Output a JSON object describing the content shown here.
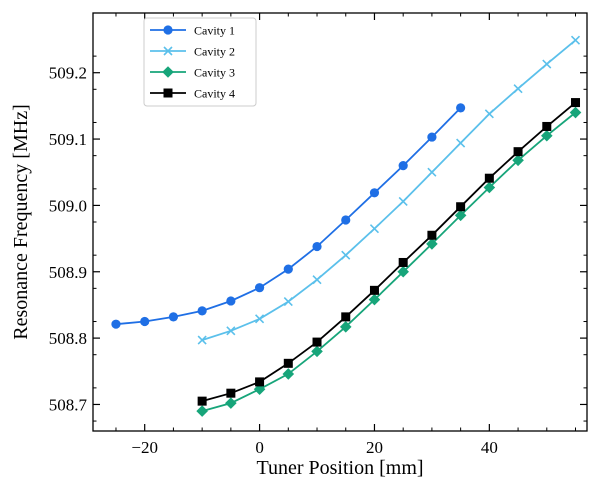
{
  "chart_data": {
    "type": "line",
    "xlabel": "Tuner Position [mm]",
    "ylabel": "Resonance Frequency [MHz]",
    "xlim": [
      -29,
      57
    ],
    "ylim": [
      508.66,
      509.29
    ],
    "x_ticks": [
      -20,
      0,
      20,
      40
    ],
    "x_tick_labels": [
      "−20",
      "0",
      "20",
      "40"
    ],
    "y_ticks": [
      508.7,
      508.8,
      508.9,
      509.0,
      509.1,
      509.2
    ],
    "y_tick_labels": [
      "508.7",
      "508.8",
      "508.9",
      "509.0",
      "509.1",
      "509.2"
    ],
    "grid": false,
    "legend": "top-left",
    "series": [
      {
        "name": "Cavity 1",
        "color": "#1f6fe5",
        "marker": "circle",
        "x": [
          -25,
          -20,
          -15,
          -10,
          -5,
          0,
          5,
          10,
          15,
          20,
          25,
          30,
          35
        ],
        "y": [
          508.821,
          508.825,
          508.832,
          508.841,
          508.856,
          508.876,
          508.904,
          508.938,
          508.978,
          509.019,
          509.06,
          509.103,
          509.147
        ]
      },
      {
        "name": "Cavity 2",
        "color": "#5bc0eb",
        "marker": "x",
        "x": [
          -10,
          -5,
          0,
          5,
          10,
          15,
          20,
          25,
          30,
          35,
          40,
          45,
          50,
          55
        ],
        "y": [
          508.797,
          508.811,
          508.829,
          508.855,
          508.888,
          508.925,
          508.965,
          509.006,
          509.05,
          509.094,
          509.138,
          509.176,
          509.213,
          509.249
        ]
      },
      {
        "name": "Cavity 3",
        "color": "#17a57a",
        "marker": "diamond",
        "x": [
          -10,
          -5,
          0,
          5,
          10,
          15,
          20,
          25,
          30,
          35,
          40,
          45,
          50,
          55
        ],
        "y": [
          508.69,
          508.702,
          508.723,
          508.746,
          508.78,
          508.817,
          508.858,
          508.9,
          508.942,
          508.985,
          509.027,
          509.068,
          509.105,
          509.14
        ]
      },
      {
        "name": "Cavity 4",
        "color": "#000000",
        "marker": "square",
        "x": [
          -10,
          -5,
          0,
          5,
          10,
          15,
          20,
          25,
          30,
          35,
          40,
          45,
          50,
          55
        ],
        "y": [
          508.705,
          508.717,
          508.734,
          508.762,
          508.794,
          508.832,
          508.872,
          508.914,
          508.955,
          508.998,
          509.041,
          509.081,
          509.119,
          509.155
        ]
      }
    ]
  }
}
